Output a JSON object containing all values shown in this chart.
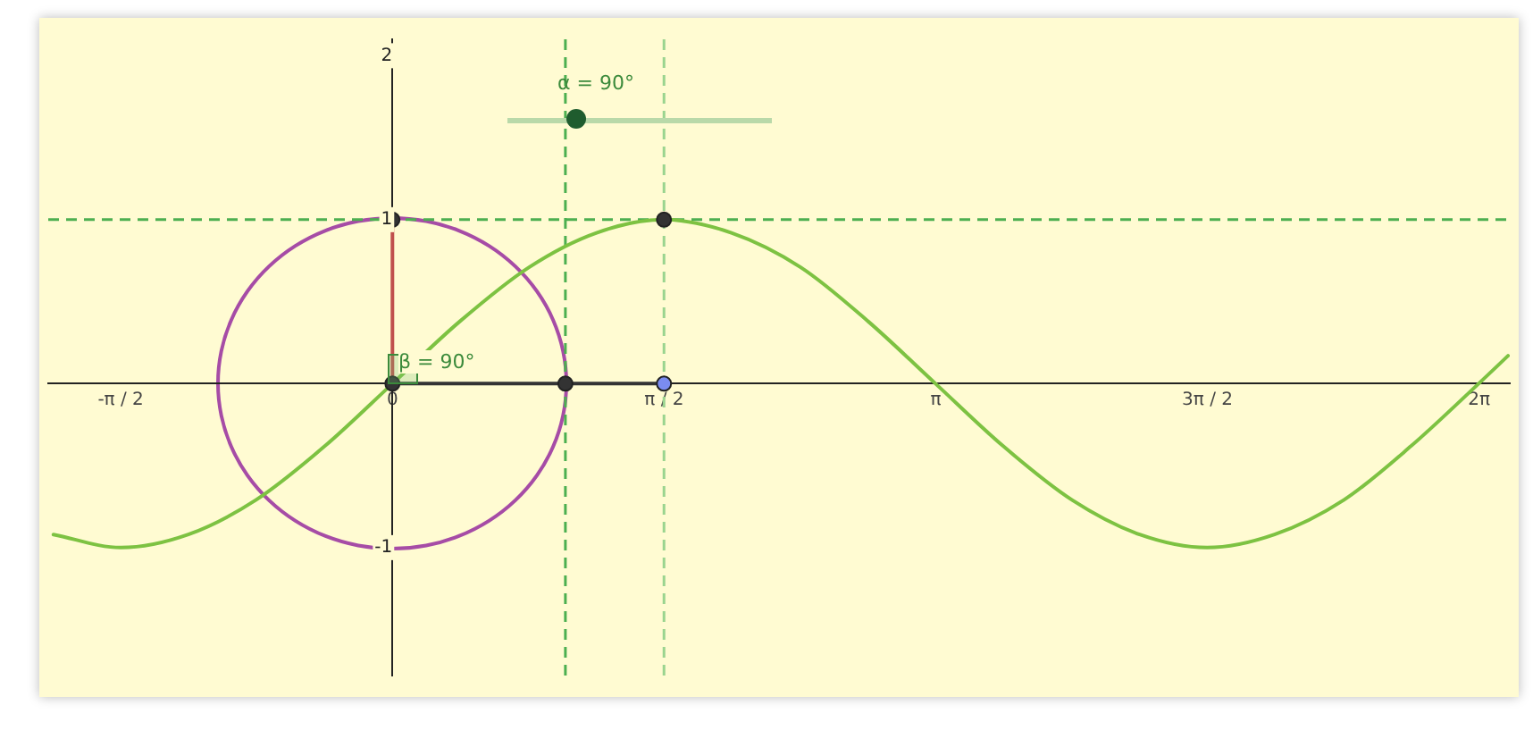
{
  "chart_data": {
    "type": "line",
    "xlim": [
      -1.99,
      6.46
    ],
    "ylim": [
      -1.78,
      2.1
    ],
    "xticks": [
      {
        "value": -1.571,
        "label": "-π / 2"
      },
      {
        "value": 0,
        "label": "0"
      },
      {
        "value": 1.571,
        "label": "π / 2"
      },
      {
        "value": 3.142,
        "label": "π"
      },
      {
        "value": 4.712,
        "label": "3π / 2"
      },
      {
        "value": 6.283,
        "label": "2π"
      }
    ],
    "yticks": [
      -1,
      1,
      2
    ],
    "grid": false,
    "legend": false,
    "series": [
      {
        "color": "#7dc242",
        "x": [
          -1.96,
          -1.57,
          -1.18,
          -0.79,
          -0.39,
          0,
          0.39,
          0.79,
          1.18,
          1.57,
          1.96,
          2.36,
          2.75,
          3.14,
          3.53,
          3.93,
          4.32,
          4.71,
          5.1,
          5.5,
          5.89,
          6.28,
          6.45
        ],
        "values": [
          -0.92,
          -1,
          -0.92,
          -0.71,
          -0.38,
          0,
          0.38,
          0.71,
          0.92,
          1,
          0.92,
          0.71,
          0.38,
          0,
          -0.38,
          -0.71,
          -0.92,
          -1,
          -0.92,
          -0.71,
          -0.38,
          0,
          0.17
        ]
      },
      {
        "color": "#c0504d",
        "x": [
          0,
          0
        ],
        "values": [
          0,
          1
        ]
      },
      {
        "color": "#333333",
        "x": [
          0,
          1.57
        ],
        "values": [
          0,
          0
        ]
      },
      {
        "type": "scatter",
        "marker": "circle",
        "colors": [
          "#333333",
          "#333333",
          "#333333",
          "#333333",
          "#7b8cf0"
        ],
        "x": [
          0,
          0,
          1,
          1.57,
          1.57
        ],
        "values": [
          1,
          0,
          0,
          1,
          0
        ]
      }
    ],
    "ref_lines": [
      {
        "axis": "y",
        "value": 1,
        "color": "#4caf50",
        "line_style": "dashed"
      },
      {
        "axis": "x",
        "value": 1,
        "color": "#4caf50",
        "line_style": "dashed"
      },
      {
        "axis": "x",
        "value": 1.57,
        "color": "#9ad48f",
        "line_style": "dashed"
      }
    ],
    "annotations": [
      "α = 90°",
      "β = 90°"
    ]
  }
}
